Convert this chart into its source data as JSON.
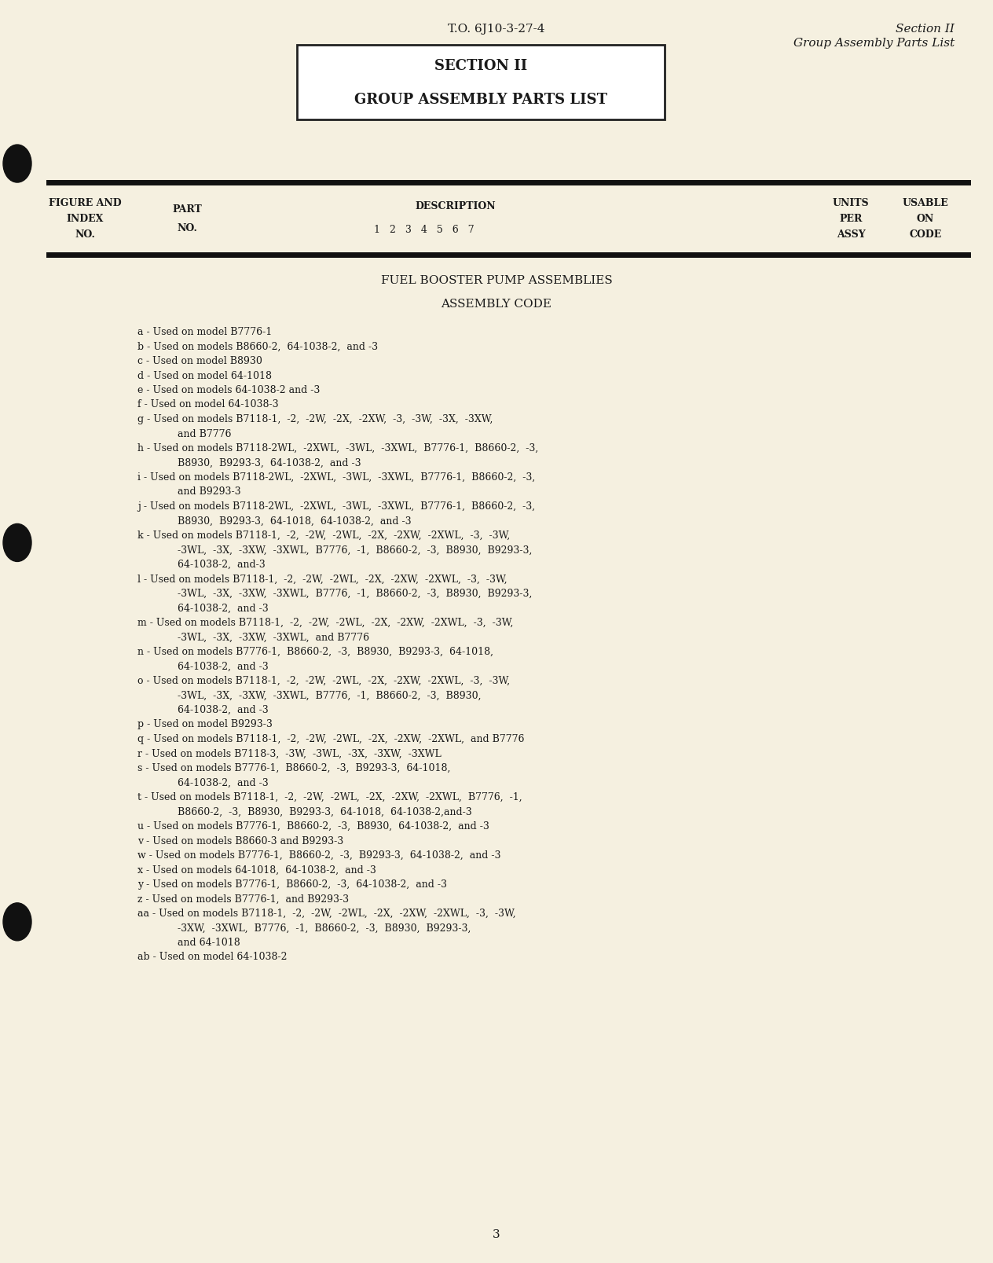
{
  "bg_color": "#f5f0e0",
  "top_center_text": "T.O. 6J10-3-27-4",
  "top_right_line1": "Section II",
  "top_right_line2": "Group Assembly Parts List",
  "box_title_line1": "SECTION II",
  "box_title_line2": "GROUP ASSEMBLY PARTS LIST",
  "section_title": "FUEL BOOSTER PUMP ASSEMBLIES",
  "sub_title": "ASSEMBLY CODE",
  "assembly_codes": [
    [
      "a - Used on model B7776-1"
    ],
    [
      "b - Used on models B8660-2,  64-1038-2,  and -3"
    ],
    [
      "c - Used on model B8930"
    ],
    [
      "d - Used on model 64-1018"
    ],
    [
      "e - Used on models 64-1038-2 and -3"
    ],
    [
      "f - Used on model 64-1038-3"
    ],
    [
      "g - Used on models B7118-1,  -2,  -2W,  -2X,  -2XW,  -3,  -3W,  -3X,  -3XW,",
      "    and B7776"
    ],
    [
      "h - Used on models B7118-2WL,  -2XWL,  -3WL,  -3XWL,  B7776-1,  B8660-2,  -3,",
      "    B8930,  B9293-3,  64-1038-2,  and -3"
    ],
    [
      "i - Used on models B7118-2WL,  -2XWL,  -3WL,  -3XWL,  B7776-1,  B8660-2,  -3,",
      "    and B9293-3"
    ],
    [
      "j - Used on models B7118-2WL,  -2XWL,  -3WL,  -3XWL,  B7776-1,  B8660-2,  -3,",
      "    B8930,  B9293-3,  64-1018,  64-1038-2,  and -3"
    ],
    [
      "k - Used on models B7118-1,  -2,  -2W,  -2WL,  -2X,  -2XW,  -2XWL,  -3,  -3W,",
      "    -3WL,  -3X,  -3XW,  -3XWL,  B7776,  -1,  B8660-2,  -3,  B8930,  B9293-3,",
      "    64-1038-2,  and-3"
    ],
    [
      "l - Used on models B7118-1,  -2,  -2W,  -2WL,  -2X,  -2XW,  -2XWL,  -3,  -3W,",
      "    -3WL,  -3X,  -3XW,  -3XWL,  B7776,  -1,  B8660-2,  -3,  B8930,  B9293-3,",
      "    64-1038-2,  and -3"
    ],
    [
      "m - Used on models B7118-1,  -2,  -2W,  -2WL,  -2X,  -2XW,  -2XWL,  -3,  -3W,",
      "    -3WL,  -3X,  -3XW,  -3XWL,  and B7776"
    ],
    [
      "n - Used on models B7776-1,  B8660-2,  -3,  B8930,  B9293-3,  64-1018,",
      "    64-1038-2,  and -3"
    ],
    [
      "o - Used on models B7118-1,  -2,  -2W,  -2WL,  -2X,  -2XW,  -2XWL,  -3,  -3W,",
      "    -3WL,  -3X,  -3XW,  -3XWL,  B7776,  -1,  B8660-2,  -3,  B8930,",
      "    64-1038-2,  and -3"
    ],
    [
      "p - Used on model B9293-3"
    ],
    [
      "q - Used on models B7118-1,  -2,  -2W,  -2WL,  -2X,  -2XW,  -2XWL,  and B7776"
    ],
    [
      "r - Used on models B7118-3,  -3W,  -3WL,  -3X,  -3XW,  -3XWL"
    ],
    [
      "s - Used on models B7776-1,  B8660-2,  -3,  B9293-3,  64-1018,",
      "    64-1038-2,  and -3"
    ],
    [
      "t - Used on models B7118-1,  -2,  -2W,  -2WL,  -2X,  -2XW,  -2XWL,  B7776,  -1,",
      "    B8660-2,  -3,  B8930,  B9293-3,  64-1018,  64-1038-2,and-3"
    ],
    [
      "u - Used on models B7776-1,  B8660-2,  -3,  B8930,  64-1038-2,  and -3"
    ],
    [
      "v - Used on models B8660-3 and B9293-3"
    ],
    [
      "w - Used on models B7776-1,  B8660-2,  -3,  B9293-3,  64-1038-2,  and -3"
    ],
    [
      "x - Used on models 64-1018,  64-1038-2,  and -3"
    ],
    [
      "y - Used on models B7776-1,  B8660-2,  -3,  64-1038-2,  and -3"
    ],
    [
      "z - Used on models B7776-1,  and B9293-3"
    ],
    [
      "aa - Used on models B7118-1,  -2,  -2W,  -2WL,  -2X,  -2XW,  -2XWL,  -3,  -3W,",
      "    -3XW,  -3XWL,  B7776,  -1,  B8660-2,  -3,  B8930,  B9293-3,",
      "    and 64-1018"
    ],
    [
      "ab - Used on model 64-1038-2"
    ]
  ],
  "page_number": "3",
  "text_color": "#1a1a1a"
}
